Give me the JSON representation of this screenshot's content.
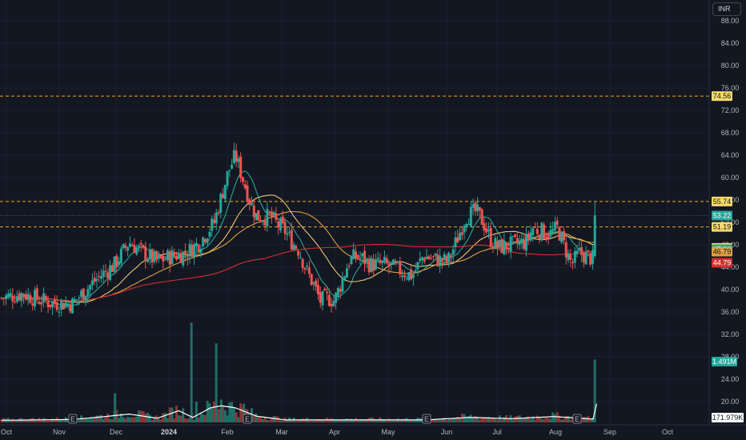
{
  "currency_label": "INR",
  "chart_data": {
    "type": "candlestick",
    "y_axis": {
      "position": "right",
      "range": [
        16.0,
        90.0
      ],
      "ticks": [
        "88.00",
        "84.00",
        "80.00",
        "76.00",
        "72.00",
        "68.00",
        "64.00",
        "60.00",
        "56.00",
        "52.00",
        "48.00",
        "44.00",
        "40.00",
        "36.00",
        "32.00",
        "28.00",
        "24.00",
        "20.00"
      ],
      "tick_values": [
        88,
        84,
        80,
        76,
        72,
        68,
        64,
        60,
        56,
        52,
        48,
        44,
        40,
        36,
        32,
        28,
        24,
        20
      ]
    },
    "x_axis": {
      "ticks": [
        {
          "label": "Oct",
          "bold": false
        },
        {
          "label": "Nov",
          "bold": false
        },
        {
          "label": "Dec",
          "bold": false
        },
        {
          "label": "2024",
          "bold": true
        },
        {
          "label": "Feb",
          "bold": false
        },
        {
          "label": "Mar",
          "bold": false
        },
        {
          "label": "Apr",
          "bold": false
        },
        {
          "label": "May",
          "bold": false
        },
        {
          "label": "Jun",
          "bold": false
        },
        {
          "label": "Jul",
          "bold": false
        },
        {
          "label": "Aug",
          "bold": false
        },
        {
          "label": "Sep",
          "bold": false
        },
        {
          "label": "Oct",
          "bold": false
        }
      ]
    },
    "colors": {
      "up": "#26a69a",
      "down": "#ef5350",
      "ma_fast": "#26a69a",
      "ma_mid": "#f0c674",
      "ma_slow": "#e0a040",
      "ma_long": "#d32f2f",
      "volume_ma": "#ffffff",
      "level_line": "#f5a623"
    },
    "horizontal_levels": [
      {
        "value": 74.56,
        "label": "74.56"
      },
      {
        "value": 55.74,
        "label": "55.74"
      },
      {
        "value": 51.19,
        "label": "51.19"
      }
    ],
    "last_price": {
      "value": 53.22,
      "label": "53.22"
    },
    "ma_last_values": [
      {
        "value": 47.44,
        "label": "47.44",
        "color": "#f5d96b"
      },
      {
        "value": 47.21,
        "label": "47.21",
        "color": "#26a69a"
      },
      {
        "value": 46.79,
        "label": "46.79",
        "color": "#e0a040"
      },
      {
        "value": 44.79,
        "label": "44.79",
        "color": "#d32f2f"
      }
    ],
    "volume": {
      "last_label": "1.491M",
      "ma_label": "171.979K"
    },
    "earnings_markers": [
      "E",
      "E",
      "E",
      "E"
    ],
    "price_path": [
      {
        "x": 0.0,
        "y": 38.5
      },
      {
        "x": 3.0,
        "y": 39.3
      },
      {
        "x": 5.0,
        "y": 38.3
      },
      {
        "x": 7.0,
        "y": 37.6
      },
      {
        "x": 10.0,
        "y": 37.5
      },
      {
        "x": 13.5,
        "y": 42.0
      },
      {
        "x": 16.0,
        "y": 44.5
      },
      {
        "x": 18.0,
        "y": 48.5
      },
      {
        "x": 20.0,
        "y": 46.5
      },
      {
        "x": 22.0,
        "y": 45.0
      },
      {
        "x": 24.0,
        "y": 46.0
      },
      {
        "x": 26.0,
        "y": 46.5
      },
      {
        "x": 28.0,
        "y": 48.5
      },
      {
        "x": 30.0,
        "y": 52.0
      },
      {
        "x": 32.0,
        "y": 61.0
      },
      {
        "x": 33.0,
        "y": 64.0
      },
      {
        "x": 34.0,
        "y": 60.0
      },
      {
        "x": 35.0,
        "y": 56.0
      },
      {
        "x": 36.0,
        "y": 53.0
      },
      {
        "x": 38.0,
        "y": 53.0
      },
      {
        "x": 39.0,
        "y": 51.5
      },
      {
        "x": 40.0,
        "y": 50.5
      },
      {
        "x": 41.0,
        "y": 48.5
      },
      {
        "x": 42.0,
        "y": 47.0
      },
      {
        "x": 43.0,
        "y": 43.5
      },
      {
        "x": 44.0,
        "y": 41.0
      },
      {
        "x": 45.0,
        "y": 38.0
      },
      {
        "x": 46.0,
        "y": 38.5
      },
      {
        "x": 47.0,
        "y": 38.0
      },
      {
        "x": 48.0,
        "y": 41.5
      },
      {
        "x": 49.0,
        "y": 45.0
      },
      {
        "x": 50.0,
        "y": 46.0
      },
      {
        "x": 51.0,
        "y": 45.5
      },
      {
        "x": 52.0,
        "y": 44.5
      },
      {
        "x": 54.0,
        "y": 44.5
      },
      {
        "x": 56.0,
        "y": 43.5
      },
      {
        "x": 58.0,
        "y": 42.5
      },
      {
        "x": 59.5,
        "y": 46.0
      },
      {
        "x": 61.0,
        "y": 45.5
      },
      {
        "x": 63.0,
        "y": 45.0
      },
      {
        "x": 64.0,
        "y": 48.0
      },
      {
        "x": 65.5,
        "y": 53.0
      },
      {
        "x": 67.0,
        "y": 54.0
      },
      {
        "x": 68.0,
        "y": 52.0
      },
      {
        "x": 69.0,
        "y": 49.0
      },
      {
        "x": 70.0,
        "y": 47.5
      },
      {
        "x": 72.0,
        "y": 48.0
      },
      {
        "x": 74.0,
        "y": 48.5
      },
      {
        "x": 75.0,
        "y": 51.0
      },
      {
        "x": 76.0,
        "y": 50.5
      },
      {
        "x": 77.5,
        "y": 50.0
      },
      {
        "x": 78.5,
        "y": 51.0
      },
      {
        "x": 79.5,
        "y": 47.5
      },
      {
        "x": 80.5,
        "y": 44.5
      },
      {
        "x": 81.5,
        "y": 46.5
      },
      {
        "x": 82.5,
        "y": 46.0
      },
      {
        "x": 83.5,
        "y": 45.5
      },
      {
        "x": 84.0,
        "y": 53.2
      }
    ],
    "volume_path": [
      {
        "x": 0.0,
        "v": 0.05
      },
      {
        "x": 10.0,
        "v": 0.07
      },
      {
        "x": 14.0,
        "v": 0.13
      },
      {
        "x": 18.0,
        "v": 0.2
      },
      {
        "x": 22.0,
        "v": 0.1
      },
      {
        "x": 25.0,
        "v": 0.28
      },
      {
        "x": 27.0,
        "v": 0.12
      },
      {
        "x": 29.5,
        "v": 0.35
      },
      {
        "x": 31.0,
        "v": 0.4
      },
      {
        "x": 33.0,
        "v": 0.35
      },
      {
        "x": 36.0,
        "v": 0.15
      },
      {
        "x": 40.0,
        "v": 0.06
      },
      {
        "x": 60.0,
        "v": 0.06
      },
      {
        "x": 66.0,
        "v": 0.12
      },
      {
        "x": 72.0,
        "v": 0.09
      },
      {
        "x": 78.0,
        "v": 0.14
      },
      {
        "x": 83.5,
        "v": 0.08
      },
      {
        "x": 84.0,
        "v": 1.49
      }
    ]
  }
}
